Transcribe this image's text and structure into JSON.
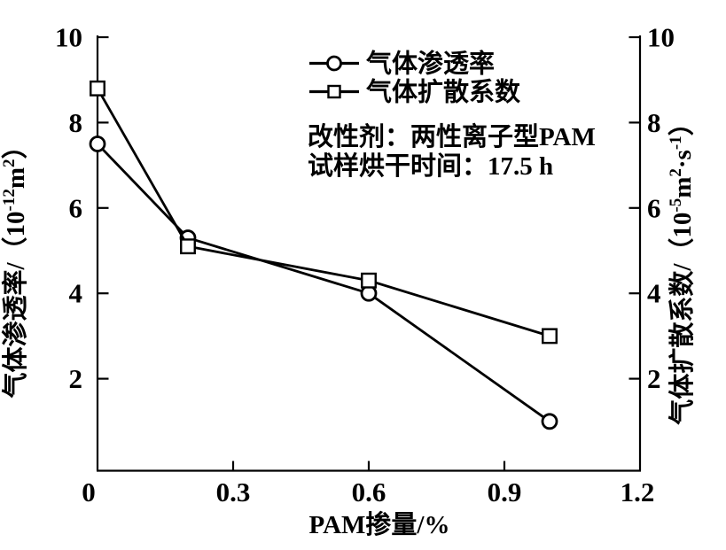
{
  "chart_data": {
    "type": "line",
    "title": "",
    "xlabel": "PAM掺量/%",
    "xlim": [
      0,
      1.2
    ],
    "ylim_left": [
      0,
      10
    ],
    "ylim_right": [
      0,
      10
    ],
    "x_tick_values": [
      0,
      0.3,
      0.6,
      0.9,
      1.2
    ],
    "x_tick_labels": [
      "0",
      "0.3",
      "0.6",
      "0.9",
      "1.2"
    ],
    "y_tick_values": [
      2,
      4,
      6,
      8,
      10
    ],
    "y_tick_labels": [
      "2",
      "4",
      "6",
      "8",
      "10"
    ],
    "grid": false,
    "ylabel_left": {
      "text": "气体渗透率/（10⁻¹²m²）",
      "segments": [
        {
          "t": "气体渗透率/（10"
        },
        {
          "t": "-12",
          "sup": true
        },
        {
          "t": "m"
        },
        {
          "t": "2",
          "sup": true
        },
        {
          "t": "）"
        }
      ]
    },
    "ylabel_right": {
      "text": "气体扩散系数/（10⁻⁵m²·s⁻¹）",
      "segments": [
        {
          "t": "气体扩散系数/（10"
        },
        {
          "t": "-5",
          "sup": true
        },
        {
          "t": "m"
        },
        {
          "t": "2",
          "sup": true
        },
        {
          "t": "·s"
        },
        {
          "t": "-1",
          "sup": true
        },
        {
          "t": "）"
        }
      ]
    },
    "legend": {
      "position": "upper-center",
      "entries": [
        {
          "label": "气体渗透率",
          "marker": "circle"
        },
        {
          "label": "气体扩散系数",
          "marker": "square"
        }
      ]
    },
    "series": [
      {
        "name": "气体渗透率",
        "axis": "left",
        "marker": "circle",
        "x": [
          0,
          0.2,
          0.6,
          1.0
        ],
        "y": [
          7.5,
          5.3,
          4.0,
          1.0
        ]
      },
      {
        "name": "气体扩散系数",
        "axis": "right",
        "marker": "square",
        "x": [
          0,
          0.2,
          0.6,
          1.0
        ],
        "y": [
          8.8,
          5.1,
          4.3,
          3.0
        ]
      }
    ],
    "annotations": [
      {
        "text": "改性剂：两性离子型PAM"
      },
      {
        "text": "试样烘干时间：17.5 h"
      }
    ],
    "colors": {
      "foreground": "#000000",
      "background": "#ffffff"
    }
  }
}
